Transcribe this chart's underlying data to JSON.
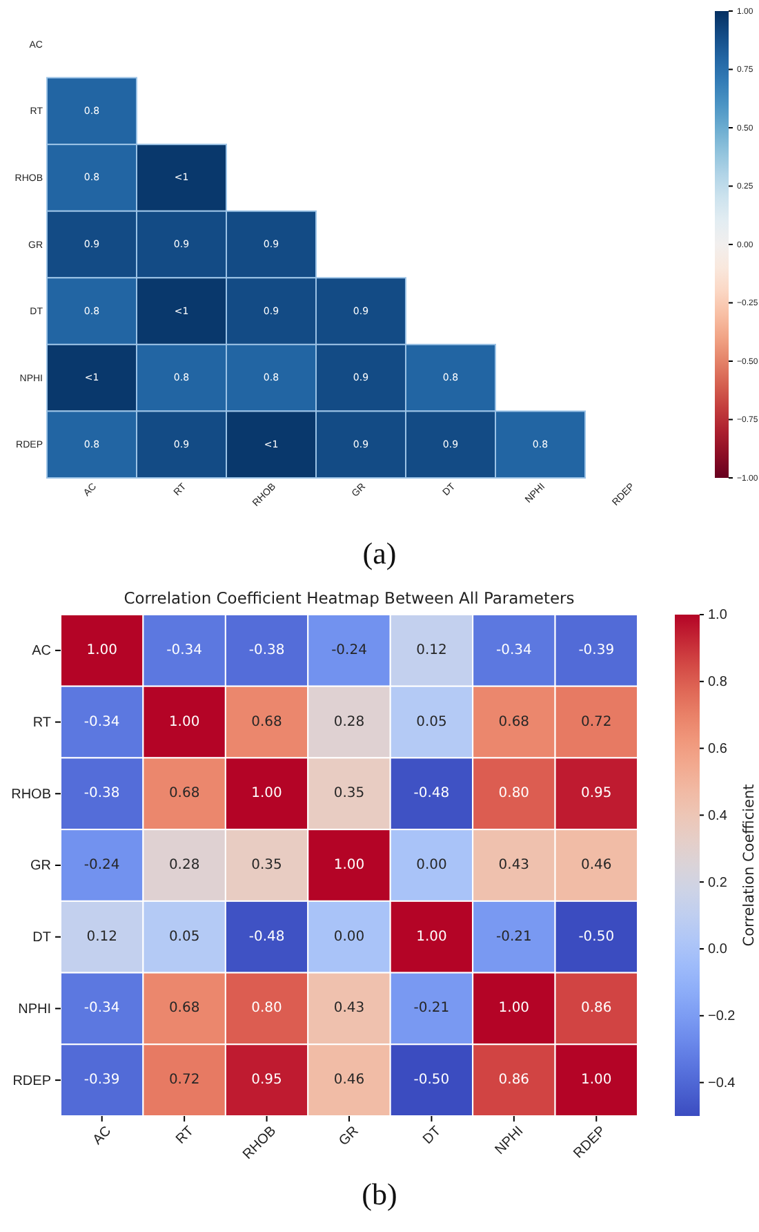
{
  "chart_data": [
    {
      "type": "heatmap",
      "annotations": [
        "(a)"
      ],
      "categories": [
        "AC",
        "RT",
        "RHOB",
        "GR",
        "DT",
        "NPHI",
        "RDEP"
      ],
      "y_categories": [
        "AC",
        "RT",
        "RHOB",
        "GR",
        "DT",
        "NPHI",
        "RDEP"
      ],
      "cells": [
        [
          null,
          null,
          null,
          null,
          null,
          null,
          null
        ],
        [
          0.8,
          null,
          null,
          null,
          null,
          null,
          null
        ],
        [
          0.8,
          0.97,
          null,
          null,
          null,
          null,
          null
        ],
        [
          0.9,
          0.9,
          0.9,
          null,
          null,
          null,
          null
        ],
        [
          0.8,
          0.97,
          0.9,
          0.9,
          null,
          null,
          null
        ],
        [
          0.97,
          0.8,
          0.8,
          0.9,
          0.8,
          null,
          null
        ],
        [
          0.8,
          0.9,
          0.97,
          0.9,
          0.9,
          0.8,
          null
        ]
      ],
      "cell_labels": [
        [
          null,
          null,
          null,
          null,
          null,
          null,
          null
        ],
        [
          "0.8",
          null,
          null,
          null,
          null,
          null,
          null
        ],
        [
          "0.8",
          "<1",
          null,
          null,
          null,
          null,
          null
        ],
        [
          "0.9",
          "0.9",
          "0.9",
          null,
          null,
          null,
          null
        ],
        [
          "0.8",
          "<1",
          "0.9",
          "0.9",
          null,
          null,
          null
        ],
        [
          "<1",
          "0.8",
          "0.8",
          "0.9",
          "0.8",
          null,
          null
        ],
        [
          "0.8",
          "0.9",
          "<1",
          "0.9",
          "0.9",
          "0.8",
          null
        ]
      ],
      "clim": [
        -1,
        1
      ],
      "cticks": [
        {
          "value": -1,
          "label": "−1.00"
        },
        {
          "value": -0.75,
          "label": "−0.75"
        },
        {
          "value": -0.5,
          "label": "−0.50"
        },
        {
          "value": -0.25,
          "label": "−0.25"
        },
        {
          "value": 0,
          "label": "0.00"
        },
        {
          "value": 0.25,
          "label": "0.25"
        },
        {
          "value": 0.5,
          "label": "0.50"
        },
        {
          "value": 0.75,
          "label": "0.75"
        },
        {
          "value": 1,
          "label": "1.00"
        }
      ]
    },
    {
      "type": "heatmap",
      "title": "Correlation Coefficient Heatmap Between All Parameters",
      "clabel": "Correlation Coefficient",
      "annotations": [
        "(b)"
      ],
      "categories": [
        "AC",
        "RT",
        "RHOB",
        "GR",
        "DT",
        "NPHI",
        "RDEP"
      ],
      "y_categories": [
        "AC",
        "RT",
        "RHOB",
        "GR",
        "DT",
        "NPHI",
        "RDEP"
      ],
      "cells": [
        [
          1.0,
          -0.34,
          -0.38,
          -0.24,
          0.12,
          -0.34,
          -0.39
        ],
        [
          -0.34,
          1.0,
          0.68,
          0.28,
          0.05,
          0.68,
          0.72
        ],
        [
          -0.38,
          0.68,
          1.0,
          0.35,
          -0.48,
          0.8,
          0.95
        ],
        [
          -0.24,
          0.28,
          0.35,
          1.0,
          0.0,
          0.43,
          0.46
        ],
        [
          0.12,
          0.05,
          -0.48,
          0.0,
          1.0,
          -0.21,
          -0.5
        ],
        [
          -0.34,
          0.68,
          0.8,
          0.43,
          -0.21,
          1.0,
          0.86
        ],
        [
          -0.39,
          0.72,
          0.95,
          0.46,
          -0.5,
          0.86,
          1.0
        ]
      ],
      "cell_labels": [
        [
          "1.00",
          "-0.34",
          "-0.38",
          "-0.24",
          "0.12",
          "-0.34",
          "-0.39"
        ],
        [
          "-0.34",
          "1.00",
          "0.68",
          "0.28",
          "0.05",
          "0.68",
          "0.72"
        ],
        [
          "-0.38",
          "0.68",
          "1.00",
          "0.35",
          "-0.48",
          "0.80",
          "0.95"
        ],
        [
          "-0.24",
          "0.28",
          "0.35",
          "1.00",
          "0.00",
          "0.43",
          "0.46"
        ],
        [
          "0.12",
          "0.05",
          "-0.48",
          "0.00",
          "1.00",
          "-0.21",
          "-0.50"
        ],
        [
          "-0.34",
          "0.68",
          "0.80",
          "0.43",
          "-0.21",
          "1.00",
          "0.86"
        ],
        [
          "-0.39",
          "0.72",
          "0.95",
          "0.46",
          "-0.50",
          "0.86",
          "1.00"
        ]
      ],
      "clim": [
        -0.5,
        1.0
      ],
      "cticks": [
        {
          "value": -0.4,
          "label": "−0.4"
        },
        {
          "value": -0.2,
          "label": "−0.2"
        },
        {
          "value": 0,
          "label": "0.0"
        },
        {
          "value": 0.2,
          "label": "0.2"
        },
        {
          "value": 0.4,
          "label": "0.4"
        },
        {
          "value": 0.6,
          "label": "0.6"
        },
        {
          "value": 0.8,
          "label": "0.8"
        },
        {
          "value": 1.0,
          "label": "1.0"
        }
      ]
    }
  ]
}
